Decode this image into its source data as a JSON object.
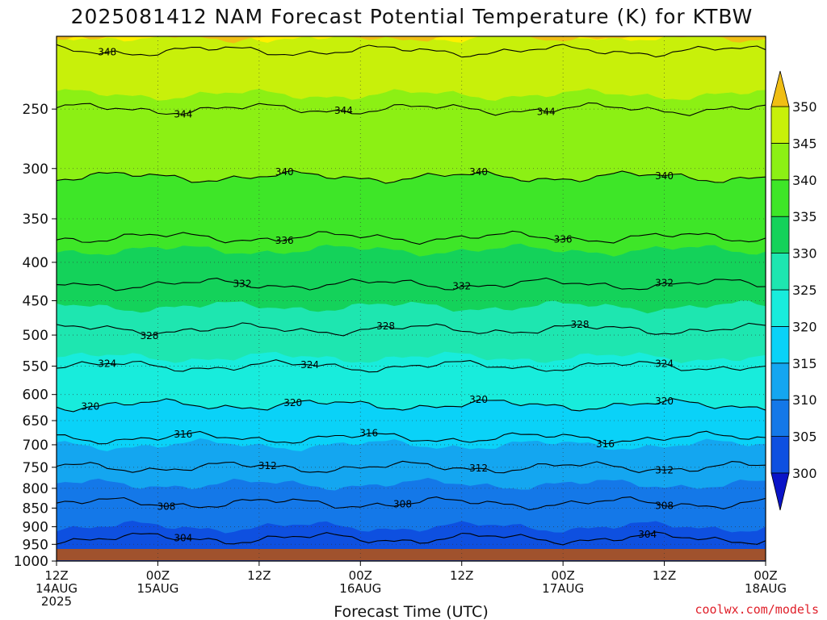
{
  "title": "2025081412 NAM Forecast Potential Temperature (K) for KTBW",
  "credit": "coolwx.com/models",
  "chart_data": {
    "type": "heatmap",
    "title": "2025081412 NAM Forecast Potential Temperature (K) for KTBW",
    "xlabel": "Forecast Time (UTC)",
    "ylabel": "",
    "y_scale": "log",
    "ylim": [
      1000,
      200
    ],
    "xlim_hours": [
      0,
      84
    ],
    "grid": true,
    "y_ticks": [
      1000,
      950,
      900,
      850,
      800,
      750,
      700,
      650,
      600,
      550,
      500,
      450,
      400,
      350,
      300,
      250
    ],
    "x_ticks": [
      {
        "hour": 0,
        "lines": [
          "12Z",
          "14AUG",
          "2025"
        ]
      },
      {
        "hour": 12,
        "lines": [
          "00Z",
          "15AUG"
        ]
      },
      {
        "hour": 24,
        "lines": [
          "12Z"
        ]
      },
      {
        "hour": 36,
        "lines": [
          "00Z",
          "16AUG"
        ]
      },
      {
        "hour": 48,
        "lines": [
          "12Z"
        ]
      },
      {
        "hour": 60,
        "lines": [
          "00Z",
          "17AUG"
        ]
      },
      {
        "hour": 72,
        "lines": [
          "12Z"
        ]
      },
      {
        "hour": 84,
        "lines": [
          "00Z",
          "18AUG"
        ]
      }
    ],
    "profile": {
      "pressure_hPa": [
        1000,
        950,
        900,
        850,
        800,
        750,
        700,
        650,
        600,
        550,
        500,
        450,
        400,
        350,
        300,
        250,
        200
      ],
      "theta_K": [
        301.5,
        303.5,
        305,
        307.5,
        309.5,
        312,
        315,
        318.5,
        321,
        324,
        327.5,
        330.5,
        334,
        337.5,
        340.5,
        344,
        349
      ]
    },
    "contour_levels": [
      304,
      308,
      312,
      316,
      320,
      324,
      328,
      332,
      336,
      340,
      344,
      348
    ],
    "contour_labels": [
      {
        "value": 348,
        "hour": 6
      },
      {
        "value": 344,
        "hour": 15
      },
      {
        "value": 344,
        "hour": 34
      },
      {
        "value": 344,
        "hour": 58
      },
      {
        "value": 340,
        "hour": 27
      },
      {
        "value": 340,
        "hour": 50
      },
      {
        "value": 340,
        "hour": 72
      },
      {
        "value": 336,
        "hour": 27
      },
      {
        "value": 336,
        "hour": 60
      },
      {
        "value": 332,
        "hour": 22
      },
      {
        "value": 332,
        "hour": 48
      },
      {
        "value": 332,
        "hour": 72
      },
      {
        "value": 328,
        "hour": 11
      },
      {
        "value": 328,
        "hour": 39
      },
      {
        "value": 328,
        "hour": 62
      },
      {
        "value": 324,
        "hour": 6
      },
      {
        "value": 324,
        "hour": 30
      },
      {
        "value": 324,
        "hour": 72
      },
      {
        "value": 320,
        "hour": 4
      },
      {
        "value": 320,
        "hour": 28
      },
      {
        "value": 320,
        "hour": 50
      },
      {
        "value": 320,
        "hour": 72
      },
      {
        "value": 316,
        "hour": 15
      },
      {
        "value": 316,
        "hour": 37
      },
      {
        "value": 316,
        "hour": 65
      },
      {
        "value": 312,
        "hour": 25
      },
      {
        "value": 312,
        "hour": 50
      },
      {
        "value": 312,
        "hour": 72
      },
      {
        "value": 308,
        "hour": 13
      },
      {
        "value": 308,
        "hour": 41
      },
      {
        "value": 308,
        "hour": 72
      },
      {
        "value": 304,
        "hour": 15
      },
      {
        "value": 304,
        "hour": 70
      }
    ],
    "colorbar": {
      "ticks": [
        300,
        305,
        310,
        315,
        320,
        325,
        330,
        335,
        340,
        345,
        350
      ],
      "bins": [
        {
          "from": 295,
          "to": 300,
          "color": "#0a14c8"
        },
        {
          "from": 300,
          "to": 305,
          "color": "#0e50e0"
        },
        {
          "from": 305,
          "to": 310,
          "color": "#1478e8"
        },
        {
          "from": 310,
          "to": 315,
          "color": "#14a6f0"
        },
        {
          "from": 315,
          "to": 320,
          "color": "#0ad2f8"
        },
        {
          "from": 320,
          "to": 325,
          "color": "#18ecdc"
        },
        {
          "from": 325,
          "to": 330,
          "color": "#1ee6b0"
        },
        {
          "from": 330,
          "to": 335,
          "color": "#14d25a"
        },
        {
          "from": 335,
          "to": 340,
          "color": "#3ee628"
        },
        {
          "from": 340,
          "to": 345,
          "color": "#8cf014"
        },
        {
          "from": 345,
          "to": 350,
          "color": "#c8f00a"
        },
        {
          "from": 350,
          "to": 355,
          "color": "#fff000"
        },
        {
          "from": 355,
          "to": 360,
          "color": "#f0be14"
        }
      ]
    },
    "ground_color": "#a0522d"
  }
}
